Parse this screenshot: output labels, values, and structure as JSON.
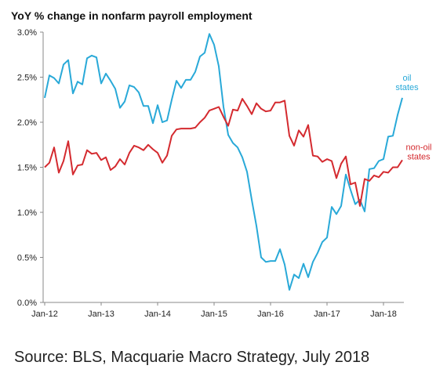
{
  "source_text": "Source: BLS, Macquarie Macro Strategy, July 2018",
  "chart_data": {
    "type": "line",
    "title": "YoY % change in nonfarm payroll employment",
    "xlabel": "",
    "ylabel": "",
    "ylim": [
      0,
      3.0
    ],
    "y_ticks": [
      "0.0%",
      "0.5%",
      "1.0%",
      "1.5%",
      "2.0%",
      "2.5%",
      "3.0%"
    ],
    "x_ticks": [
      "Jan-12",
      "Jan-13",
      "Jan-14",
      "Jan-15",
      "Jan-16",
      "Jan-17",
      "Jan-18"
    ],
    "x_start": "Jan-12",
    "grid": false,
    "legend": "inline-right",
    "series": [
      {
        "name": "oil states",
        "label_lines": [
          "oil",
          "states"
        ],
        "color": "#29a9d8",
        "values": [
          2.27,
          2.52,
          2.49,
          2.43,
          2.64,
          2.69,
          2.32,
          2.45,
          2.42,
          2.71,
          2.74,
          2.72,
          2.43,
          2.54,
          2.46,
          2.37,
          2.16,
          2.23,
          2.41,
          2.39,
          2.33,
          2.18,
          2.18,
          1.99,
          2.19,
          2.0,
          2.02,
          2.25,
          2.46,
          2.38,
          2.47,
          2.47,
          2.56,
          2.73,
          2.77,
          2.98,
          2.86,
          2.62,
          2.17,
          1.86,
          1.77,
          1.72,
          1.61,
          1.45,
          1.14,
          0.85,
          0.5,
          0.45,
          0.46,
          0.46,
          0.59,
          0.42,
          0.14,
          0.31,
          0.27,
          0.43,
          0.28,
          0.45,
          0.55,
          0.67,
          0.72,
          1.06,
          0.98,
          1.07,
          1.42,
          1.25,
          1.09,
          1.14,
          1.01,
          1.48,
          1.49,
          1.57,
          1.59,
          1.84,
          1.85,
          2.08,
          2.27
        ]
      },
      {
        "name": "non-oil states",
        "label_lines": [
          "non-oil",
          "states"
        ],
        "color": "#d42a2f",
        "values": [
          1.5,
          1.55,
          1.72,
          1.44,
          1.57,
          1.79,
          1.42,
          1.52,
          1.53,
          1.69,
          1.65,
          1.66,
          1.58,
          1.61,
          1.47,
          1.51,
          1.59,
          1.53,
          1.66,
          1.74,
          1.72,
          1.69,
          1.75,
          1.7,
          1.66,
          1.55,
          1.63,
          1.85,
          1.92,
          1.93,
          1.93,
          1.93,
          1.94,
          2.0,
          2.05,
          2.13,
          2.15,
          2.17,
          2.06,
          1.96,
          2.14,
          2.13,
          2.26,
          2.18,
          2.09,
          2.21,
          2.15,
          2.12,
          2.13,
          2.22,
          2.22,
          2.24,
          1.85,
          1.74,
          1.91,
          1.84,
          1.97,
          1.63,
          1.62,
          1.56,
          1.59,
          1.57,
          1.38,
          1.54,
          1.62,
          1.31,
          1.33,
          1.07,
          1.37,
          1.35,
          1.41,
          1.39,
          1.45,
          1.44,
          1.5,
          1.5,
          1.58
        ]
      }
    ]
  }
}
